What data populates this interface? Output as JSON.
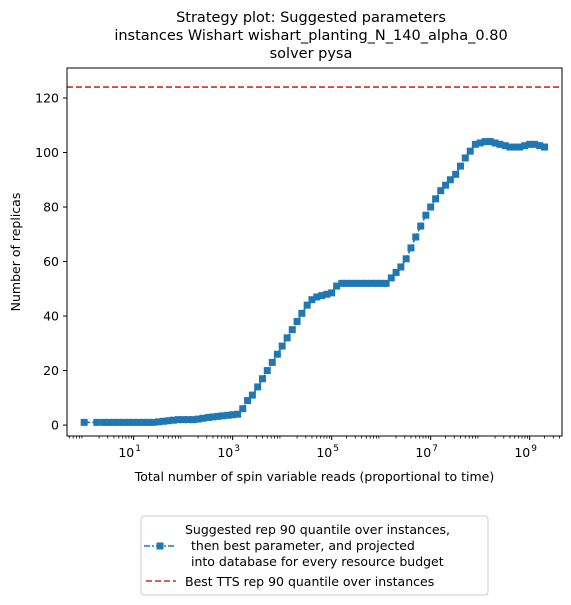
{
  "chart_data": {
    "type": "line",
    "title_lines": [
      "Strategy plot: Suggested parameters",
      "instances Wishart wishart_planting_N_140_alpha_0.80",
      "solver pysa"
    ],
    "xlabel": "Total number of spin variable reads (proportional to time)",
    "ylabel": "Number of replicas",
    "x_scale": "log",
    "xlim": [
      0.45,
      4500000000.0
    ],
    "ylim": [
      -4,
      131
    ],
    "x_ticks": [
      {
        "base": "10",
        "exp": "1",
        "value": 10
      },
      {
        "base": "10",
        "exp": "3",
        "value": 1000
      },
      {
        "base": "10",
        "exp": "5",
        "value": 100000
      },
      {
        "base": "10",
        "exp": "7",
        "value": 10000000
      },
      {
        "base": "10",
        "exp": "9",
        "value": 1000000000
      }
    ],
    "y_ticks": [
      "0",
      "20",
      "40",
      "60",
      "80",
      "100",
      "120"
    ],
    "grid": false,
    "legend_position": "below the plot",
    "series": [
      {
        "name": "Suggested rep 90 quantile over instances,\n then best parameter, and projected\n into database for every resource budget",
        "legend_lines": [
          "Suggested rep 90 quantile over instances,",
          "then best parameter, and projected",
          "into database for every resource budget"
        ],
        "color": "#1f77b4",
        "marker": "square",
        "line_style": "dashdot",
        "points": [
          [
            1,
            1
          ],
          [
            1.8,
            1
          ],
          [
            2.5,
            1
          ],
          [
            3.2,
            1
          ],
          [
            4,
            1
          ],
          [
            5,
            1
          ],
          [
            6.3,
            1
          ],
          [
            8,
            1
          ],
          [
            10,
            1
          ],
          [
            12.6,
            1
          ],
          [
            16,
            1
          ],
          [
            20,
            1
          ],
          [
            25,
            1
          ],
          [
            32,
            1.2
          ],
          [
            40,
            1.4
          ],
          [
            50,
            1.6
          ],
          [
            63,
            1.8
          ],
          [
            80,
            2
          ],
          [
            100,
            2
          ],
          [
            126,
            2
          ],
          [
            160,
            2
          ],
          [
            200,
            2.2
          ],
          [
            250,
            2.5
          ],
          [
            320,
            2.8
          ],
          [
            400,
            3
          ],
          [
            500,
            3.2
          ],
          [
            630,
            3.4
          ],
          [
            800,
            3.6
          ],
          [
            1000,
            3.8
          ],
          [
            1260,
            4
          ],
          [
            1600,
            6
          ],
          [
            2000,
            9
          ],
          [
            2500,
            11
          ],
          [
            3200,
            14
          ],
          [
            4000,
            17
          ],
          [
            5000,
            20
          ],
          [
            6300,
            23
          ],
          [
            8000,
            26
          ],
          [
            10000,
            29
          ],
          [
            12600,
            32
          ],
          [
            16000,
            35
          ],
          [
            20000,
            38
          ],
          [
            25000,
            41
          ],
          [
            32000,
            44
          ],
          [
            40000,
            46
          ],
          [
            50000,
            47
          ],
          [
            63000,
            47.5
          ],
          [
            80000,
            48
          ],
          [
            100000,
            48.5
          ],
          [
            126000,
            51
          ],
          [
            160000,
            52
          ],
          [
            200000,
            52
          ],
          [
            250000,
            52
          ],
          [
            320000,
            52
          ],
          [
            400000,
            52
          ],
          [
            500000,
            52
          ],
          [
            630000,
            52
          ],
          [
            800000,
            52
          ],
          [
            1000000,
            52
          ],
          [
            1260000,
            52
          ],
          [
            1600000,
            54
          ],
          [
            2000000,
            56
          ],
          [
            2500000,
            58
          ],
          [
            3200000,
            61
          ],
          [
            4000000,
            65
          ],
          [
            5000000,
            69
          ],
          [
            6300000,
            73
          ],
          [
            8000000,
            77
          ],
          [
            10000000,
            80
          ],
          [
            12600000,
            83
          ],
          [
            16000000,
            86
          ],
          [
            20000000,
            88
          ],
          [
            25000000,
            90
          ],
          [
            32000000,
            92
          ],
          [
            40000000,
            95
          ],
          [
            50000000,
            98
          ],
          [
            63000000,
            100.5
          ],
          [
            80000000,
            103
          ],
          [
            100000000,
            103.5
          ],
          [
            126000000,
            104
          ],
          [
            160000000,
            104
          ],
          [
            200000000,
            103.5
          ],
          [
            250000000,
            103
          ],
          [
            320000000,
            102.5
          ],
          [
            400000000,
            102
          ],
          [
            500000000,
            102
          ],
          [
            630000000,
            102
          ],
          [
            800000000,
            102.5
          ],
          [
            1000000000,
            103
          ],
          [
            1260000000,
            103
          ],
          [
            1600000000,
            102.5
          ],
          [
            2000000000,
            102
          ]
        ]
      },
      {
        "name": "Best TTS rep 90 quantile over instances",
        "color": "#d62728",
        "line_style": "dashed",
        "y": 124
      }
    ]
  }
}
